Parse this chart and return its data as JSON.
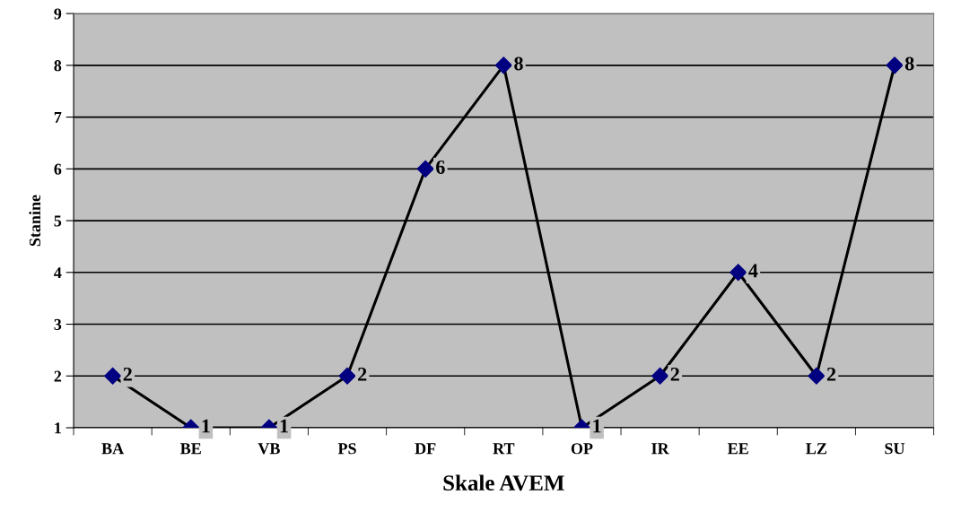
{
  "chart_data": {
    "type": "line",
    "xlabel": "Skale AVEM",
    "ylabel": "Stanine",
    "categories": [
      "BA",
      "BE",
      "VB",
      "PS",
      "DF",
      "RT",
      "OP",
      "IR",
      "EE",
      "LZ",
      "SU"
    ],
    "series": [
      {
        "color": "#000080",
        "values": [
          2,
          1,
          1,
          2,
          6,
          8,
          1,
          2,
          4,
          2,
          8
        ]
      }
    ],
    "ylim": [
      1,
      9
    ],
    "yticks": [
      1,
      2,
      3,
      4,
      5,
      6,
      7,
      8,
      9
    ],
    "grid": "y",
    "marker": "diamond",
    "line_style": "solid",
    "data_labels": true
  }
}
